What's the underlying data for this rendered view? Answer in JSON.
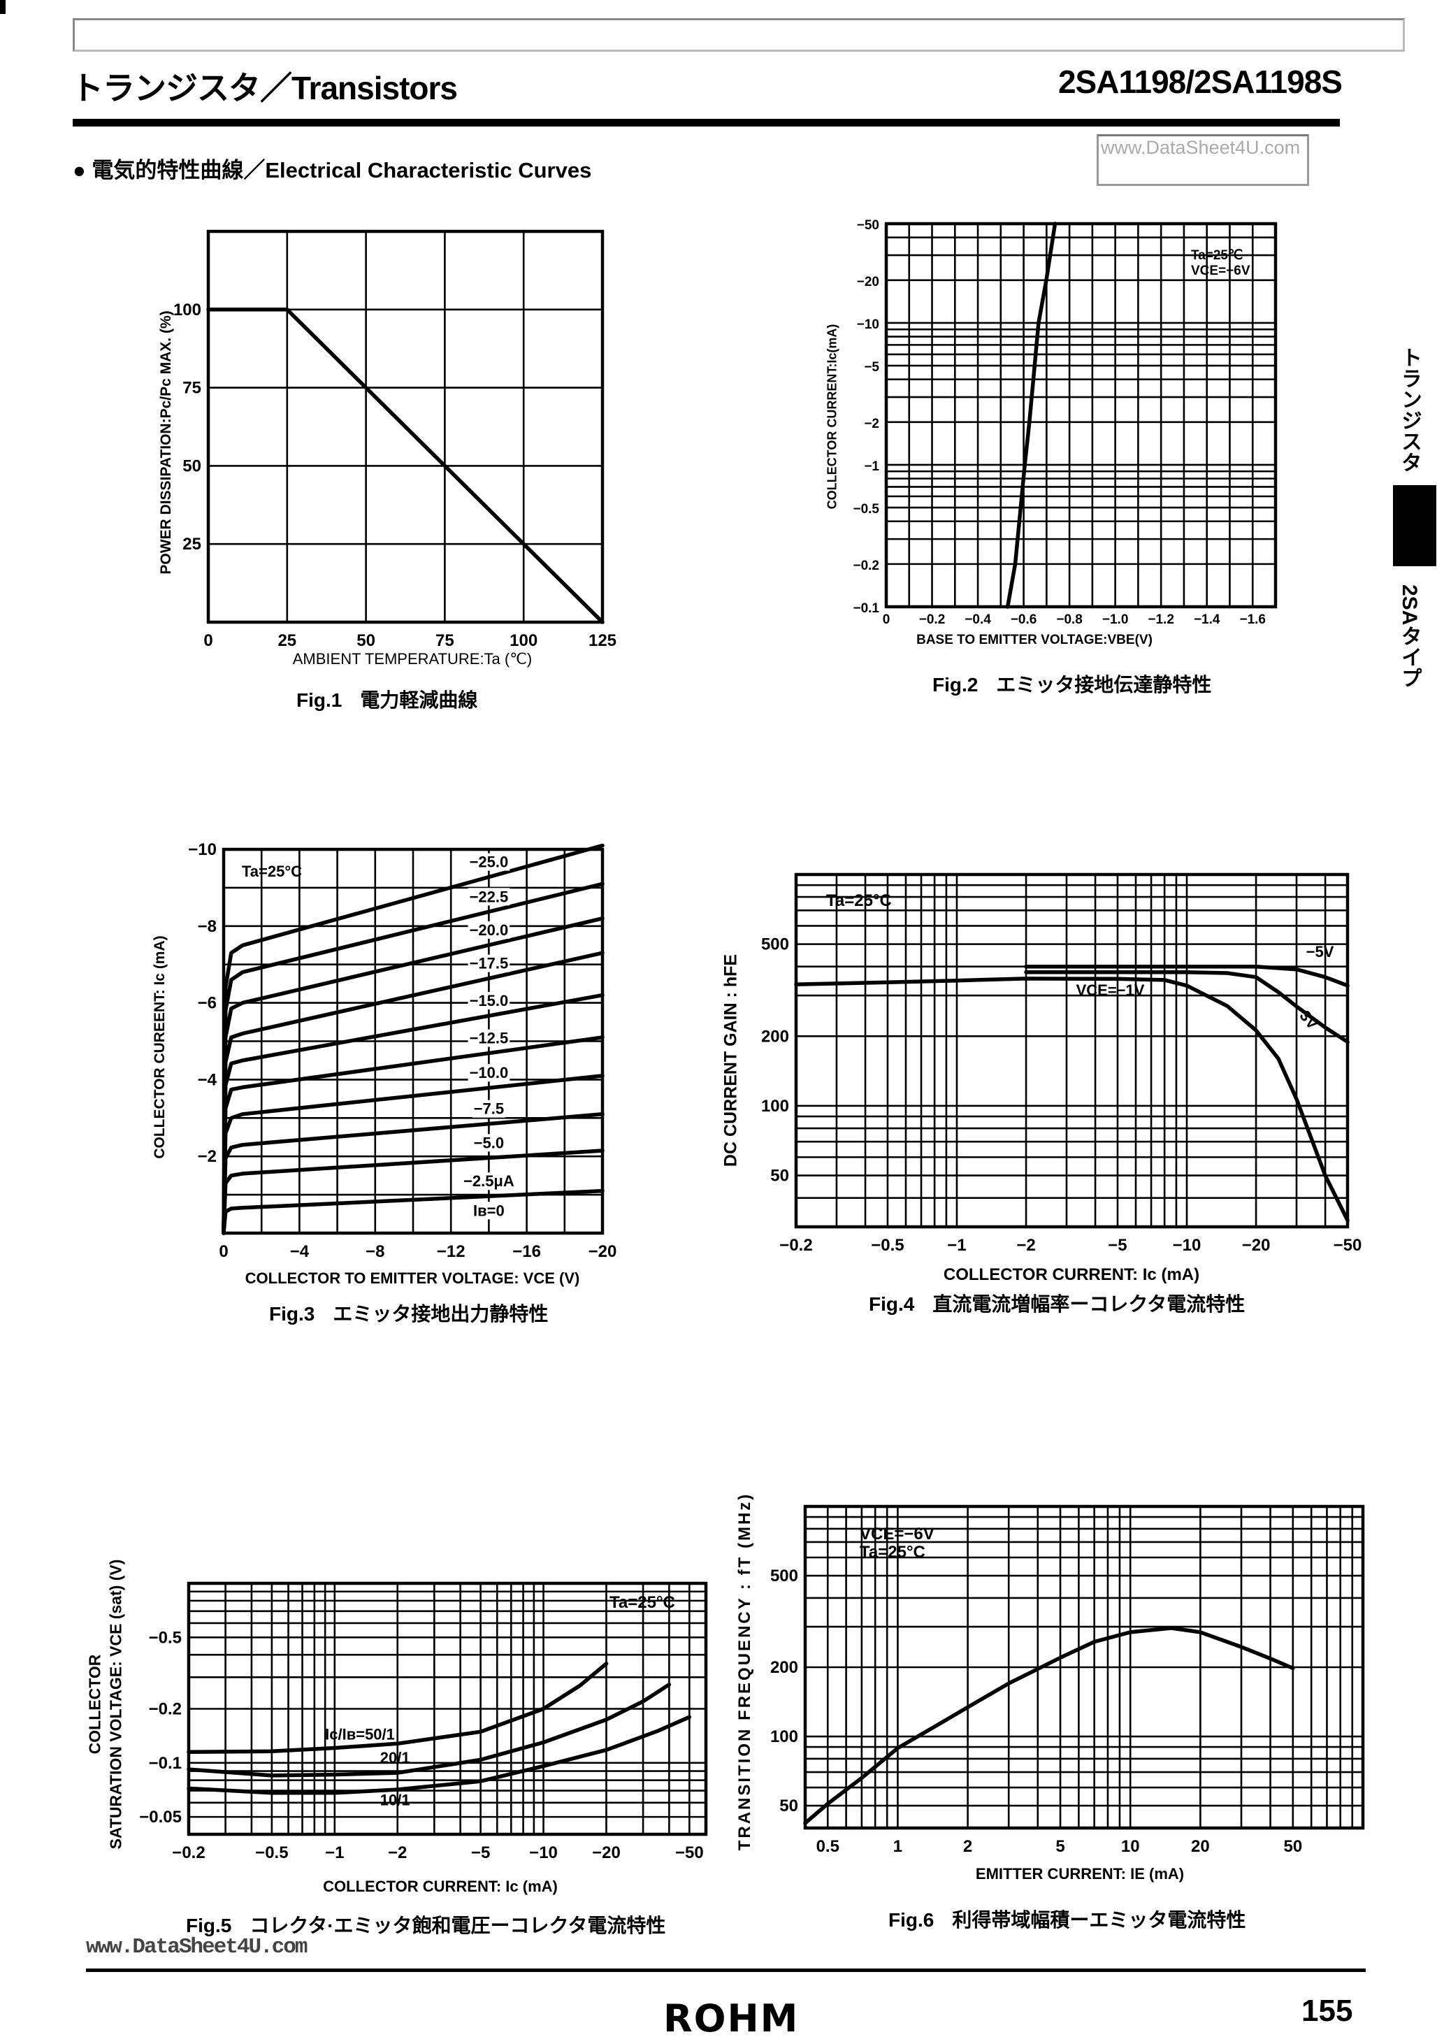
{
  "header": {
    "title_left": "トランジスタ／Transistors",
    "title_right": "2SA1198/2SA1198S",
    "watermark": "www.DataSheet4U.com",
    "section_heading": "● 電気的特性曲線／Electrical Characteristic Curves"
  },
  "side_tab": {
    "top": "トランジスタ",
    "bottom": "2SAタイプ"
  },
  "footer": {
    "watermark": "www.DataSheet4U.com",
    "logo": "ROHM",
    "page_number": "155"
  },
  "chart_data": [
    {
      "type": "line",
      "caption_number": "Fig.1",
      "caption_text": "電力軽減曲線",
      "xlabel": "AMBIENT TEMPERATURE:Ta (℃)",
      "ylabel": "POWER DISSIPATION:Pc/Pc MAX. (%)",
      "xscale": "linear",
      "yscale": "linear",
      "xlim": [
        0,
        125
      ],
      "ylim": [
        0,
        125
      ],
      "grid": true,
      "xgrid_step": 25,
      "ygrid_step": 25,
      "xticks": [
        [
          0,
          "0"
        ],
        [
          25,
          "25"
        ],
        [
          50,
          "50"
        ],
        [
          75,
          "75"
        ],
        [
          100,
          "100"
        ],
        [
          125,
          "125"
        ]
      ],
      "yticks": [
        [
          25,
          "25"
        ],
        [
          50,
          "50"
        ],
        [
          75,
          "75"
        ],
        [
          100,
          "100"
        ]
      ],
      "annotations": [],
      "series": [
        {
          "points": [
            [
              0,
              100
            ],
            [
              25,
              100
            ],
            [
              125,
              0
            ]
          ]
        }
      ]
    },
    {
      "type": "line",
      "caption_number": "Fig.2",
      "caption_text": "エミッタ接地伝達静特性",
      "xlabel": "BASE TO EMITTER VOLTAGE:VBE(V)",
      "ylabel": "COLLECTOR CURRENT:Ic(mA)",
      "xscale": "linear",
      "yscale": "log",
      "xlim": [
        0,
        -1.7
      ],
      "ylim": [
        -0.1,
        -50
      ],
      "grid": true,
      "xgrid_step": 0.1,
      "xticks": [
        [
          0,
          "0"
        ],
        [
          -0.2,
          "−0.2"
        ],
        [
          -0.4,
          "−0.4"
        ],
        [
          -0.6,
          "−0.6"
        ],
        [
          -0.8,
          "−0.8"
        ],
        [
          -1.0,
          "−1.0"
        ],
        [
          -1.2,
          "−1.2"
        ],
        [
          -1.4,
          "−1.4"
        ],
        [
          -1.6,
          "−1.6"
        ]
      ],
      "yticks": [
        [
          -0.1,
          "−0.1"
        ],
        [
          -0.2,
          "−0.2"
        ],
        [
          -0.5,
          "−0.5"
        ],
        [
          -1,
          "−1"
        ],
        [
          -2,
          "−2"
        ],
        [
          -5,
          "−5"
        ],
        [
          -10,
          "−10"
        ],
        [
          -20,
          "−20"
        ],
        [
          -50,
          "−50"
        ]
      ],
      "annotations": [
        "Ta=25℃",
        "VCE=−6V"
      ],
      "series": [
        {
          "points": [
            [
              -0.53,
              -0.1
            ],
            [
              -0.563,
              -0.2
            ],
            [
              -0.587,
              -0.5
            ],
            [
              -0.605,
              -1
            ],
            [
              -0.625,
              -2
            ],
            [
              -0.648,
              -5
            ],
            [
              -0.665,
              -10
            ],
            [
              -0.699,
              -20
            ],
            [
              -0.737,
              -50
            ]
          ]
        }
      ]
    },
    {
      "type": "line",
      "caption_number": "Fig.3",
      "caption_text": "エミッタ接地出力静特性",
      "xlabel": "COLLECTOR TO EMITTER VOLTAGE: VCE (V)",
      "ylabel": "COLLECTOR CUREENT: Ic (mA)",
      "xscale": "linear",
      "yscale": "linear",
      "xlim": [
        0,
        -20
      ],
      "ylim": [
        0,
        -10
      ],
      "grid": true,
      "xgrid_step": 2,
      "ygrid_step": 1,
      "xticks": [
        [
          0,
          "0"
        ],
        [
          -4,
          "−4"
        ],
        [
          -8,
          "−8"
        ],
        [
          -12,
          "−12"
        ],
        [
          -16,
          "−16"
        ],
        [
          -20,
          "−20"
        ]
      ],
      "yticks": [
        [
          -2,
          "−2"
        ],
        [
          -4,
          "−4"
        ],
        [
          -6,
          "−6"
        ],
        [
          -8,
          "−8"
        ],
        [
          -10,
          "−10"
        ]
      ],
      "annotations": [
        "Ta=25°C"
      ],
      "series": [
        {
          "name": "−25.0",
          "points": [
            [
              0,
              0
            ],
            [
              -0.1,
              -6.4
            ],
            [
              -0.4,
              -7.3
            ],
            [
              -1,
              -7.5
            ],
            [
              -20,
              -10.1
            ]
          ]
        },
        {
          "name": "−22.5",
          "points": [
            [
              0,
              0
            ],
            [
              -0.1,
              -5.8
            ],
            [
              -0.4,
              -6.6
            ],
            [
              -1,
              -6.8
            ],
            [
              -20,
              -9.1
            ]
          ]
        },
        {
          "name": "−20.0",
          "points": [
            [
              0,
              0
            ],
            [
              -0.1,
              -5.1
            ],
            [
              -0.4,
              -5.85
            ],
            [
              -1,
              -6.0
            ],
            [
              -20,
              -8.2
            ]
          ]
        },
        {
          "name": "−17.5",
          "points": [
            [
              0,
              0
            ],
            [
              -0.1,
              -4.45
            ],
            [
              -0.4,
              -5.1
            ],
            [
              -1,
              -5.2
            ],
            [
              -20,
              -7.3
            ]
          ]
        },
        {
          "name": "−15.0",
          "points": [
            [
              0,
              0
            ],
            [
              -0.1,
              -3.85
            ],
            [
              -0.4,
              -4.42
            ],
            [
              -1,
              -4.5
            ],
            [
              -20,
              -6.2
            ]
          ]
        },
        {
          "name": "−12.5",
          "points": [
            [
              0,
              0
            ],
            [
              -0.1,
              -3.25
            ],
            [
              -0.4,
              -3.74
            ],
            [
              -1,
              -3.8
            ],
            [
              -20,
              -5.1
            ]
          ]
        },
        {
          "name": "−10.0",
          "points": [
            [
              0,
              0
            ],
            [
              -0.1,
              -2.6
            ],
            [
              -0.4,
              -3.0
            ],
            [
              -1,
              -3.1
            ],
            [
              -20,
              -4.1
            ]
          ]
        },
        {
          "name": "−7.5",
          "points": [
            [
              0,
              0
            ],
            [
              -0.1,
              -1.95
            ],
            [
              -0.4,
              -2.23
            ],
            [
              -1,
              -2.3
            ],
            [
              -20,
              -3.1
            ]
          ]
        },
        {
          "name": "−5.0",
          "points": [
            [
              0,
              0
            ],
            [
              -0.1,
              -1.3
            ],
            [
              -0.4,
              -1.5
            ],
            [
              -1,
              -1.55
            ],
            [
              -20,
              -2.15
            ]
          ]
        },
        {
          "name": "−2.5μA",
          "points": [
            [
              0,
              0
            ],
            [
              -0.1,
              -0.56
            ],
            [
              -0.4,
              -0.64
            ],
            [
              -1,
              -0.66
            ],
            [
              -20,
              -1.1
            ]
          ]
        },
        {
          "name": "Iʙ=0",
          "points": []
        }
      ]
    },
    {
      "type": "line",
      "caption_number": "Fig.4",
      "caption_text": "直流電流増幅率ーコレクタ電流特性",
      "xlabel": "COLLECTOR CURRENT: Ic (mA)",
      "ylabel": "DC CURRENT GAIN : hFE",
      "xscale": "log",
      "yscale": "log",
      "xlim": [
        -0.2,
        -50
      ],
      "ylim": [
        30,
        1000
      ],
      "grid": true,
      "xticks": [
        [
          -0.2,
          "−0.2"
        ],
        [
          -0.5,
          "−0.5"
        ],
        [
          -1,
          "−1"
        ],
        [
          -2,
          "−2"
        ],
        [
          -5,
          "−5"
        ],
        [
          -10,
          "−10"
        ],
        [
          -20,
          "−20"
        ],
        [
          -50,
          "−50"
        ]
      ],
      "yticks": [
        [
          50,
          "50"
        ],
        [
          100,
          "100"
        ],
        [
          200,
          "200"
        ],
        [
          500,
          "500"
        ]
      ],
      "annotations": [
        "Ta=25°C"
      ],
      "series": [
        {
          "name": "VCE=−1V",
          "points": [
            [
              -0.2,
              335
            ],
            [
              -0.5,
              342
            ],
            [
              -1,
              348
            ],
            [
              -2,
              355
            ],
            [
              -5,
              354
            ],
            [
              -8,
              350
            ],
            [
              -10,
              331
            ],
            [
              -15,
              270
            ],
            [
              -20,
              212
            ],
            [
              -25,
              160
            ],
            [
              -30,
              107
            ],
            [
              -40,
              50
            ],
            [
              -50,
              32
            ]
          ]
        },
        {
          "name": "−3V",
          "points": [
            [
              -2,
              378
            ],
            [
              -5,
              378
            ],
            [
              -10,
              378
            ],
            [
              -15,
              375
            ],
            [
              -20,
              360
            ],
            [
              -25,
              310
            ],
            [
              -30,
              269
            ],
            [
              -40,
              218
            ],
            [
              -50,
              189
            ]
          ]
        },
        {
          "name": "−5V",
          "points": [
            [
              -2,
              400
            ],
            [
              -5,
              400
            ],
            [
              -10,
              400
            ],
            [
              -20,
              400
            ],
            [
              -30,
              389
            ],
            [
              -40,
              360
            ],
            [
              -50,
              331
            ]
          ]
        }
      ]
    },
    {
      "type": "line",
      "caption_number": "Fig.5",
      "caption_text": "コレクタ·エミッタ飽和電圧ーコレクタ電流特性",
      "xlabel": "COLLECTOR CURRENT: Ic (mA)",
      "ylabel_line1": "COLLECTOR",
      "ylabel_line2": "SATURATION VOLTAGE: VCE (sat) (V)",
      "xscale": "log",
      "yscale": "log",
      "xlim": [
        -0.2,
        -60
      ],
      "ylim": [
        -0.04,
        -1.0
      ],
      "grid": true,
      "xticks": [
        [
          -0.2,
          "−0.2"
        ],
        [
          -0.5,
          "−0.5"
        ],
        [
          -1,
          "−1"
        ],
        [
          -2,
          "−2"
        ],
        [
          -5,
          "−5"
        ],
        [
          -10,
          "−10"
        ],
        [
          -20,
          "−20"
        ],
        [
          -50,
          "−50"
        ]
      ],
      "yticks": [
        [
          -0.05,
          "−0.05"
        ],
        [
          -0.1,
          "−0.1"
        ],
        [
          -0.2,
          "−0.2"
        ],
        [
          -0.5,
          "−0.5"
        ]
      ],
      "annotations": [
        "Ta=25°C"
      ],
      "series": [
        {
          "name": "Ic/Iʙ=50/1",
          "points": [
            [
              -0.2,
              -0.115
            ],
            [
              -0.5,
              -0.116
            ],
            [
              -1,
              -0.121
            ],
            [
              -2,
              -0.128
            ],
            [
              -5,
              -0.149
            ],
            [
              -10,
              -0.2
            ],
            [
              -15,
              -0.27
            ],
            [
              -20,
              -0.357
            ]
          ]
        },
        {
          "name": "20/1",
          "points": [
            [
              -0.2,
              -0.092
            ],
            [
              -0.5,
              -0.085
            ],
            [
              -1,
              -0.086
            ],
            [
              -2,
              -0.088
            ],
            [
              -5,
              -0.104
            ],
            [
              -10,
              -0.13
            ],
            [
              -20,
              -0.174
            ],
            [
              -30,
              -0.22
            ],
            [
              -40,
              -0.273
            ]
          ]
        },
        {
          "name": "10/1",
          "points": [
            [
              -0.2,
              -0.072
            ],
            [
              -0.5,
              -0.068
            ],
            [
              -1,
              -0.068
            ],
            [
              -2,
              -0.071
            ],
            [
              -5,
              -0.079
            ],
            [
              -10,
              -0.096
            ],
            [
              -20,
              -0.118
            ],
            [
              -35,
              -0.15
            ],
            [
              -50,
              -0.18
            ]
          ]
        }
      ]
    },
    {
      "type": "line",
      "caption_number": "Fig.6",
      "caption_text": "利得帯域幅積ーエミッタ電流特性",
      "xlabel": "EMITTER CURRENT: IE (mA)",
      "ylabel": "TRANSITION FREQUENCY : fT (MHz)",
      "xscale": "log",
      "yscale": "log",
      "xlim": [
        0.4,
        100
      ],
      "ylim": [
        40,
        1000
      ],
      "grid": true,
      "xticks": [
        [
          0.5,
          "0.5"
        ],
        [
          1,
          "1"
        ],
        [
          2,
          "2"
        ],
        [
          5,
          "5"
        ],
        [
          10,
          "10"
        ],
        [
          20,
          "20"
        ],
        [
          50,
          "50"
        ]
      ],
      "yticks": [
        [
          50,
          "50"
        ],
        [
          100,
          "100"
        ],
        [
          200,
          "200"
        ],
        [
          500,
          "500"
        ]
      ],
      "annotations": [
        "VCE=−6V",
        "Ta=25°C"
      ],
      "series": [
        {
          "points": [
            [
              0.4,
              42
            ],
            [
              0.5,
              51
            ],
            [
              0.7,
              66
            ],
            [
              1,
              89
            ],
            [
              1.5,
              113
            ],
            [
              2,
              134
            ],
            [
              3,
              170
            ],
            [
              5,
              220
            ],
            [
              7,
              258
            ],
            [
              10,
              284
            ],
            [
              15,
              296
            ],
            [
              20,
              284
            ],
            [
              30,
              245
            ],
            [
              40,
              218
            ],
            [
              50,
              198
            ]
          ]
        }
      ]
    }
  ]
}
